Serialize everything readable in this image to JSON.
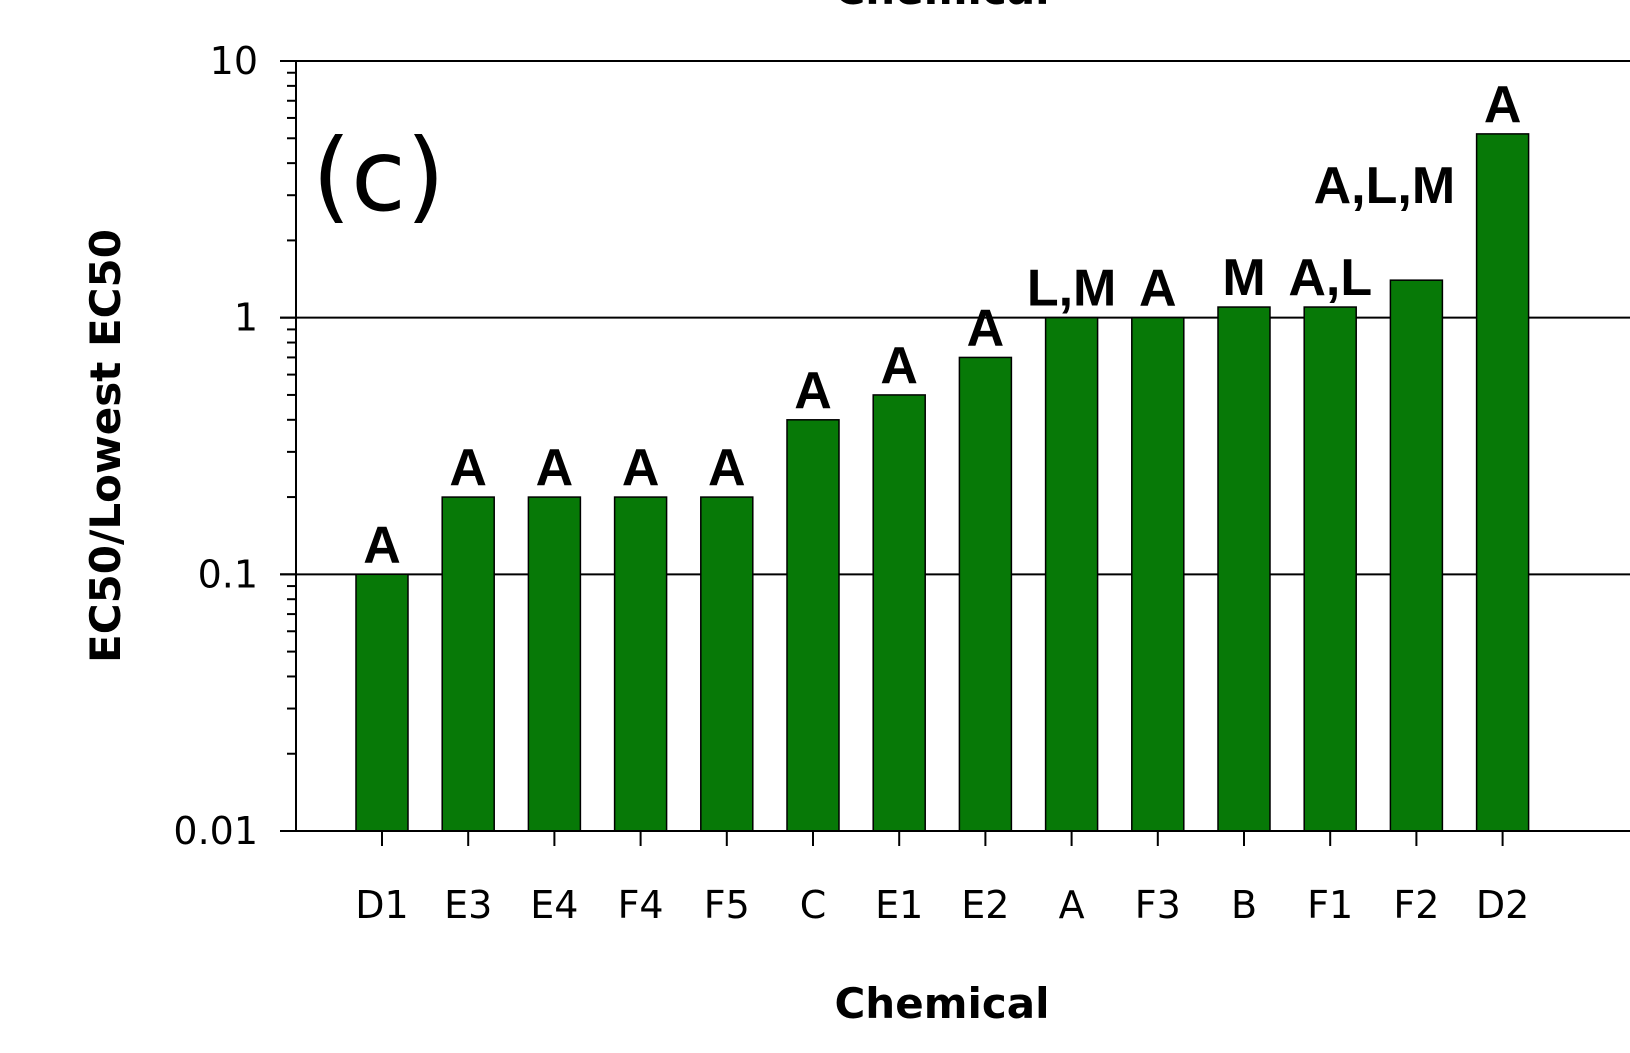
{
  "chart_data": {
    "type": "bar",
    "panel_label": "(c)",
    "top_title_fragment": "Chemical",
    "xlabel": "Chemical",
    "ylabel": "EC50/Lowest EC50",
    "yscale": "log",
    "ylim": [
      0.01,
      10
    ],
    "yticks": [
      "0.01",
      "0.1",
      "1",
      "10"
    ],
    "grid": "major horizontal",
    "bar_color": "#077907",
    "categories": [
      "D1",
      "E3",
      "E4",
      "F4",
      "F5",
      "C",
      "E1",
      "E2",
      "A",
      "F3",
      "B",
      "F1",
      "F2",
      "D2"
    ],
    "values": [
      0.1,
      0.2,
      0.2,
      0.2,
      0.2,
      0.4,
      0.5,
      0.7,
      1.0,
      1.0,
      1.1,
      1.1,
      1.4,
      5.2
    ],
    "annotations": [
      "A",
      "A",
      "A",
      "A",
      "A",
      "A",
      "A",
      "A",
      "L,M",
      "A",
      "M",
      "A,L",
      "A,L,M",
      "A"
    ]
  }
}
